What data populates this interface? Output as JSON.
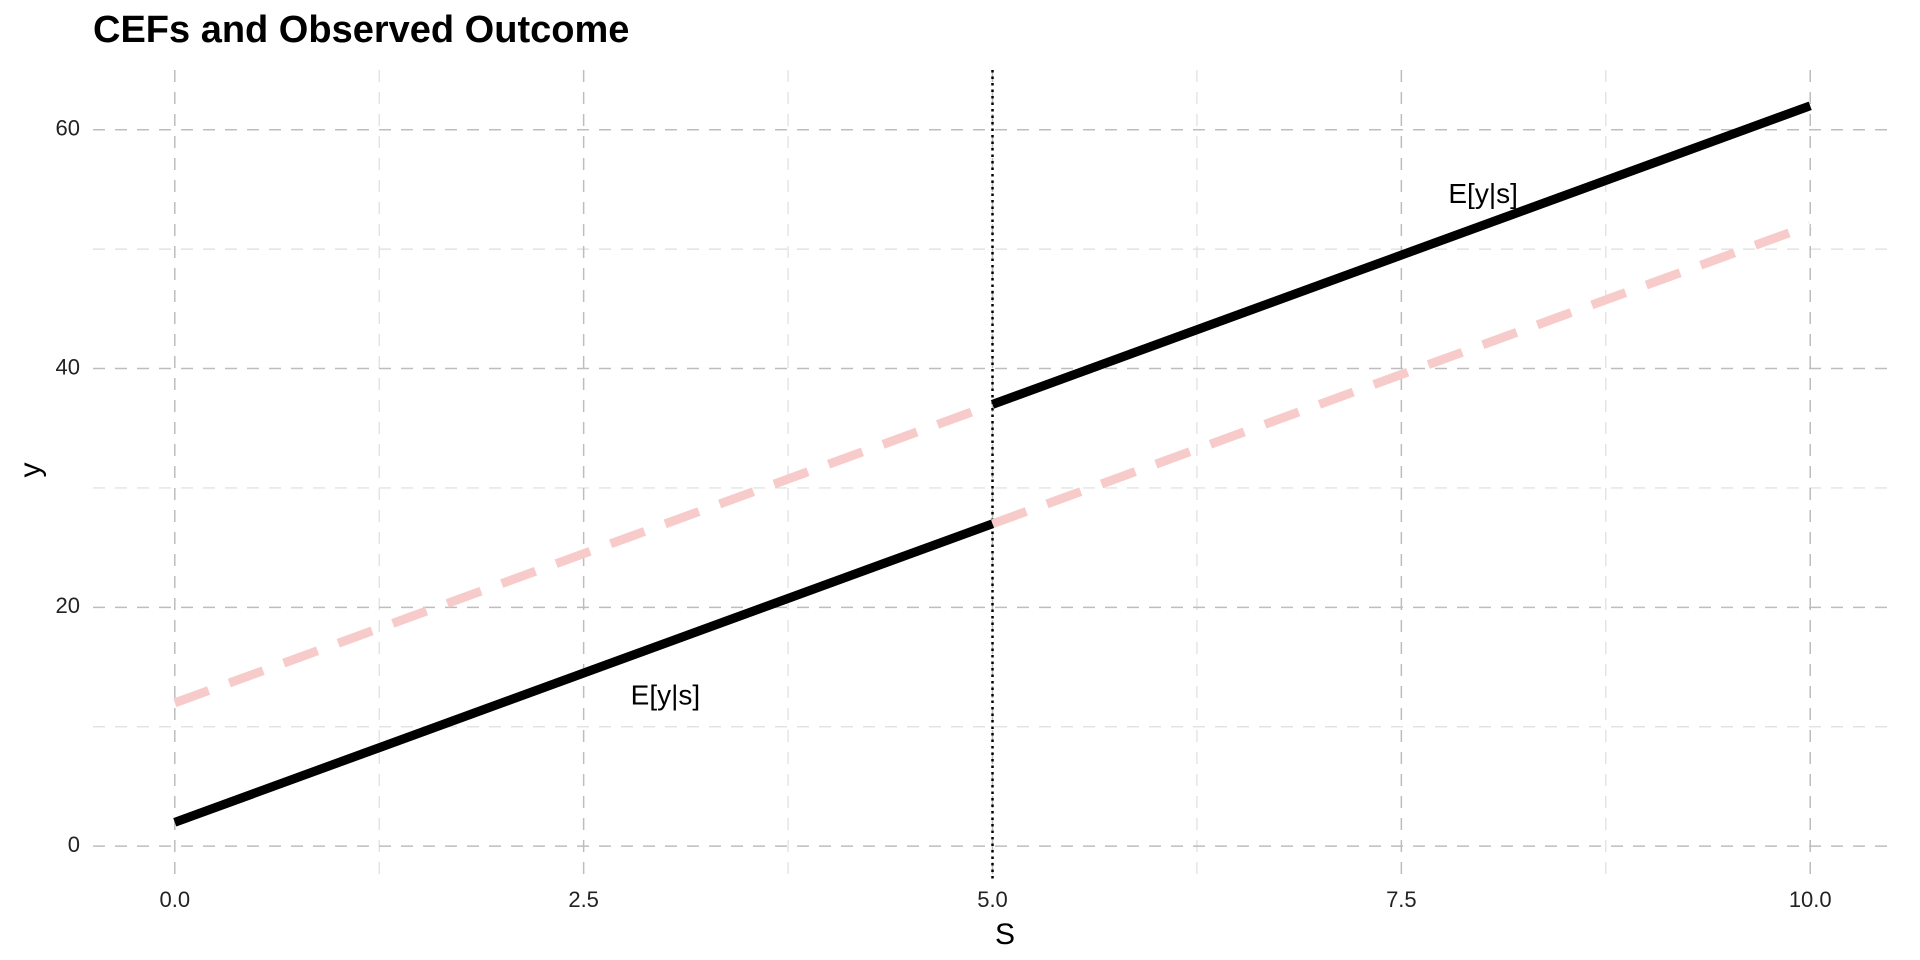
{
  "chart_data": {
    "type": "line",
    "title": "CEFs and Observed Outcome",
    "xlabel": "S",
    "ylabel": "y",
    "xlim": [
      -0.5,
      10.5
    ],
    "ylim": [
      -3,
      65
    ],
    "x_major_ticks": [
      0,
      2.5,
      5,
      7.5,
      10
    ],
    "x_tick_labels": [
      "0.0",
      "2.5",
      "5.0",
      "7.5",
      "10.0"
    ],
    "x_minor_ticks": [
      1.25,
      3.75,
      6.25,
      8.75
    ],
    "y_major_ticks": [
      0,
      20,
      40,
      60
    ],
    "y_tick_labels": [
      "0",
      "20",
      "40",
      "60"
    ],
    "y_minor_ticks": [
      10,
      30,
      50
    ],
    "grid": true,
    "legend": "none",
    "threshold": {
      "x": 5,
      "style": "dotted",
      "color": "#000000"
    },
    "series": [
      {
        "style": "solid",
        "color": "#000000",
        "segments": [
          {
            "x": [
              0,
              5
            ],
            "y": [
              2,
              27
            ]
          },
          {
            "x": [
              5,
              10
            ],
            "y": [
              37,
              62
            ]
          }
        ]
      },
      {
        "style": "dashed",
        "color": "#f8cbcb",
        "segments": [
          {
            "x": [
              0,
              5
            ],
            "y": [
              12,
              37
            ]
          },
          {
            "x": [
              5,
              10
            ],
            "y": [
              27,
              52
            ]
          }
        ]
      }
    ],
    "annotations": [
      {
        "text": "E[y|s]",
        "x": 3,
        "y": 12.5
      },
      {
        "text": "E[y|s]",
        "x": 8,
        "y": 54.5
      }
    ]
  }
}
